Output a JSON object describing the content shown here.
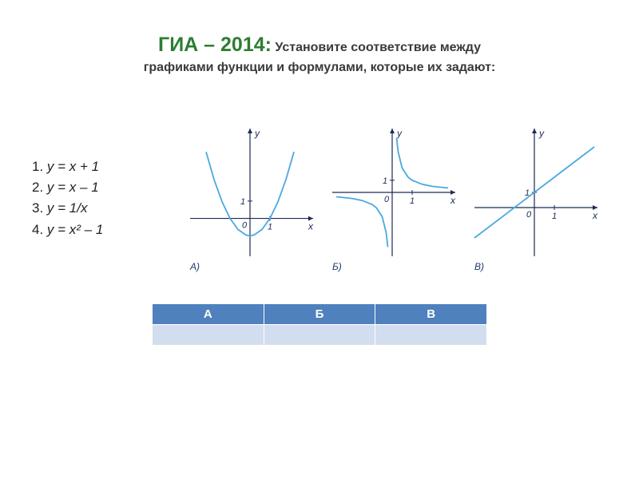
{
  "heading": {
    "main": "ГИА – 2014:",
    "sub_line1": "Установите соответствие между",
    "sub_line2": "графиками функции и формулами, которые их задают:",
    "main_color": "#2e7d32",
    "sub_color": "#3a3a3a",
    "main_fontsize": 25,
    "sub_fontsize": 16
  },
  "formulas": {
    "items": [
      {
        "n": "1.",
        "eq": "у = х + 1"
      },
      {
        "n": "2.",
        "eq": "у = х – 1"
      },
      {
        "n": "3.",
        "eq": "у = 1/х"
      },
      {
        "n": "4.",
        "eq": "у = х² – 1"
      }
    ],
    "fontsize": 17,
    "color": "#222222"
  },
  "graphs": {
    "axis_color": "#1b2a55",
    "curve_color": "#4aa8e0",
    "curve_width": 1.8,
    "panels": [
      {
        "type": "parabola",
        "label": "А)",
        "x_label": "х",
        "y_label": "у",
        "tick_label_x": "1",
        "tick_label_y": "1",
        "origin_label": "0",
        "x_range": [
          -3,
          3
        ],
        "y_range": [
          -2,
          5
        ],
        "formula": "y = x^2 - 1",
        "samples": [
          [
            -2.2,
            3.84
          ],
          [
            -1.8,
            2.24
          ],
          [
            -1.4,
            0.96
          ],
          [
            -1,
            0
          ],
          [
            -0.6,
            -0.64
          ],
          [
            -0.2,
            -0.96
          ],
          [
            0,
            -1
          ],
          [
            0.2,
            -0.96
          ],
          [
            0.6,
            -0.64
          ],
          [
            1,
            0
          ],
          [
            1.4,
            0.96
          ],
          [
            1.8,
            2.24
          ],
          [
            2.2,
            3.84
          ]
        ]
      },
      {
        "type": "reciprocal",
        "label": "Б)",
        "x_label": "х",
        "y_label": "у",
        "tick_label_x": "1",
        "tick_label_y": "1",
        "origin_label": "0",
        "x_range": [
          -3,
          3
        ],
        "y_range": [
          -5,
          5
        ],
        "formula": "y = 1/x",
        "samples_pos": [
          [
            0.22,
            4.5
          ],
          [
            0.3,
            3.33
          ],
          [
            0.5,
            2
          ],
          [
            0.8,
            1.25
          ],
          [
            1,
            1
          ],
          [
            1.5,
            0.67
          ],
          [
            2,
            0.5
          ],
          [
            2.8,
            0.36
          ]
        ],
        "samples_neg": [
          [
            -2.8,
            -0.36
          ],
          [
            -2,
            -0.5
          ],
          [
            -1.5,
            -0.67
          ],
          [
            -1,
            -1
          ],
          [
            -0.8,
            -1.25
          ],
          [
            -0.5,
            -2
          ],
          [
            -0.3,
            -3.33
          ],
          [
            -0.22,
            -4.5
          ]
        ]
      },
      {
        "type": "line",
        "label": "В)",
        "x_label": "х",
        "y_label": "у",
        "tick_label_x": "1",
        "tick_label_y": "1",
        "origin_label": "0",
        "x_range": [
          -3,
          3
        ],
        "y_range": [
          -3,
          5
        ],
        "formula": "y = x + 1",
        "samples": [
          [
            -3,
            -2
          ],
          [
            3,
            4
          ]
        ]
      }
    ]
  },
  "answer_table": {
    "header_bg": "#4e81bd",
    "header_fg": "#ffffff",
    "row_bg": "#d2deef",
    "columns": [
      "А",
      "Б",
      "В"
    ],
    "rows": [
      [
        "",
        "",
        ""
      ]
    ]
  }
}
